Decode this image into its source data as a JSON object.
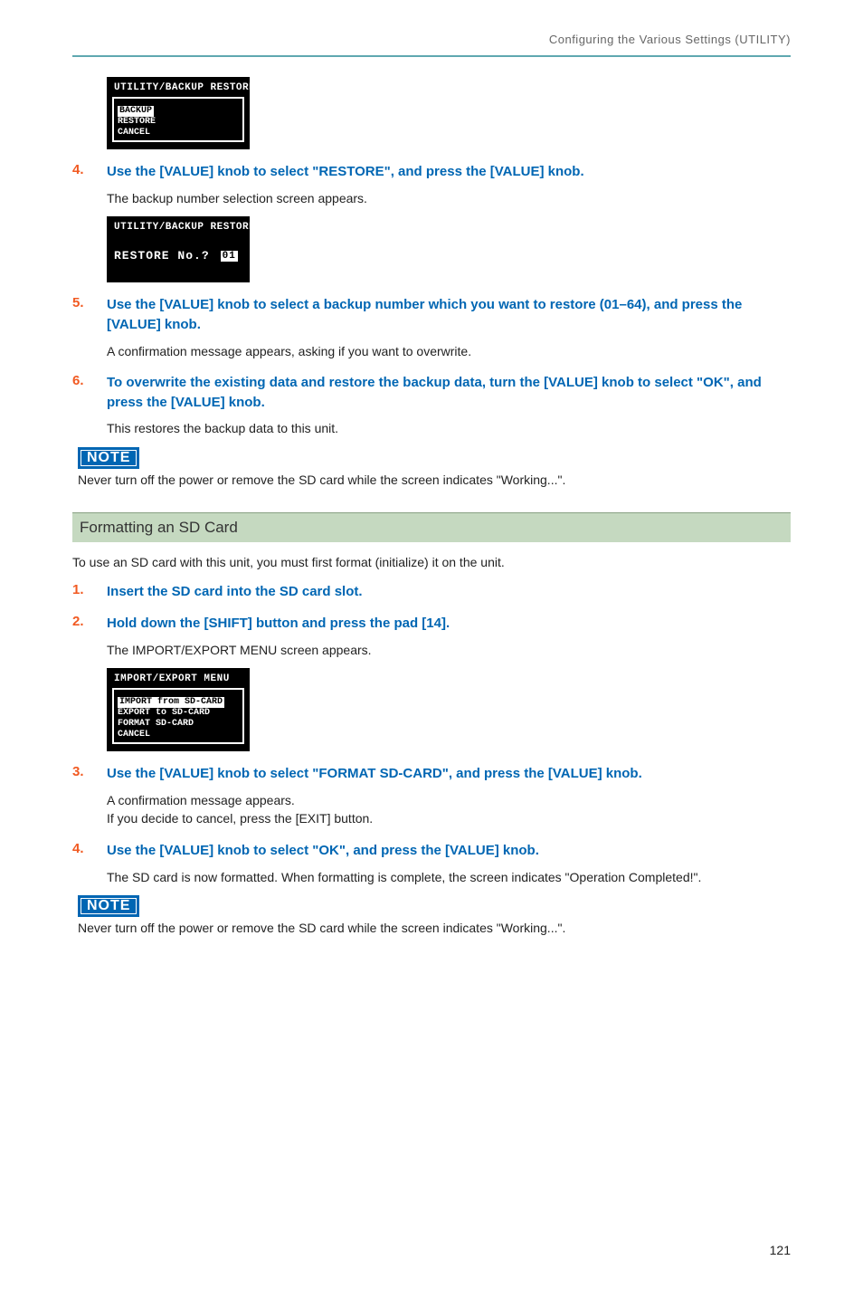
{
  "colors": {
    "rule": "#5fa8b0",
    "step_num": "#f15a22",
    "step_text": "#0066b3",
    "note_bg": "#0066b3",
    "section_bg": "#c5d9c0",
    "section_border": "#88a082",
    "body": "#222222",
    "header_text": "#666666"
  },
  "header": "Configuring the Various Settings (UTILITY)",
  "lcd1": {
    "title": "UTILITY/BACKUP RESTORE",
    "lines": [
      "BACKUP",
      "RESTORE",
      "CANCEL"
    ],
    "highlight_index": 0
  },
  "step4": {
    "num": "4.",
    "text": "Use the [VALUE] knob to select \"RESTORE\", and press the [VALUE] knob.",
    "after": "The backup number selection screen appears."
  },
  "lcd2": {
    "title": "UTILITY/BACKUP RESTORE",
    "prompt": "RESTORE No.?",
    "value": "01"
  },
  "step5": {
    "num": "5.",
    "text": "Use the [VALUE] knob to select a backup number which you want to restore (01–64), and press the [VALUE] knob.",
    "after": "A confirmation message appears, asking if you want to overwrite."
  },
  "step6": {
    "num": "6.",
    "text": "To overwrite the existing data and restore the backup data, turn the [VALUE] knob to select \"OK\", and press the [VALUE] knob.",
    "after": "This restores the backup data to this unit."
  },
  "note1": {
    "label": "NOTE",
    "text": "Never turn off the power or remove the SD card while the screen indicates \"Working...\"."
  },
  "section": "Formatting an SD Card",
  "section_intro": "To use an SD card with this unit, you must first format (initialize) it on the unit.",
  "f_step1": {
    "num": "1.",
    "text": "Insert the SD card into the SD card slot."
  },
  "f_step2": {
    "num": "2.",
    "text": "Hold down the [SHIFT] button and press the pad [14].",
    "after": "The IMPORT/EXPORT MENU screen appears."
  },
  "lcd3": {
    "title": "IMPORT/EXPORT MENU",
    "lines": [
      "IMPORT from SD-CARD",
      "EXPORT to SD-CARD",
      "FORMAT SD-CARD",
      "CANCEL"
    ],
    "highlight_index": 0
  },
  "f_step3": {
    "num": "3.",
    "text": "Use the [VALUE] knob to select \"FORMAT SD-CARD\", and press the [VALUE] knob.",
    "after1": "A confirmation message appears.",
    "after2": "If you decide to cancel, press the [EXIT] button."
  },
  "f_step4": {
    "num": "4.",
    "text": "Use the [VALUE] knob to select \"OK\", and press the [VALUE] knob.",
    "after": "The SD card is now formatted. When formatting is complete, the screen indicates \"Operation Completed!\"."
  },
  "note2": {
    "label": "NOTE",
    "text": "Never turn off the power or remove the SD card while the screen indicates \"Working...\"."
  },
  "page_number": "121"
}
